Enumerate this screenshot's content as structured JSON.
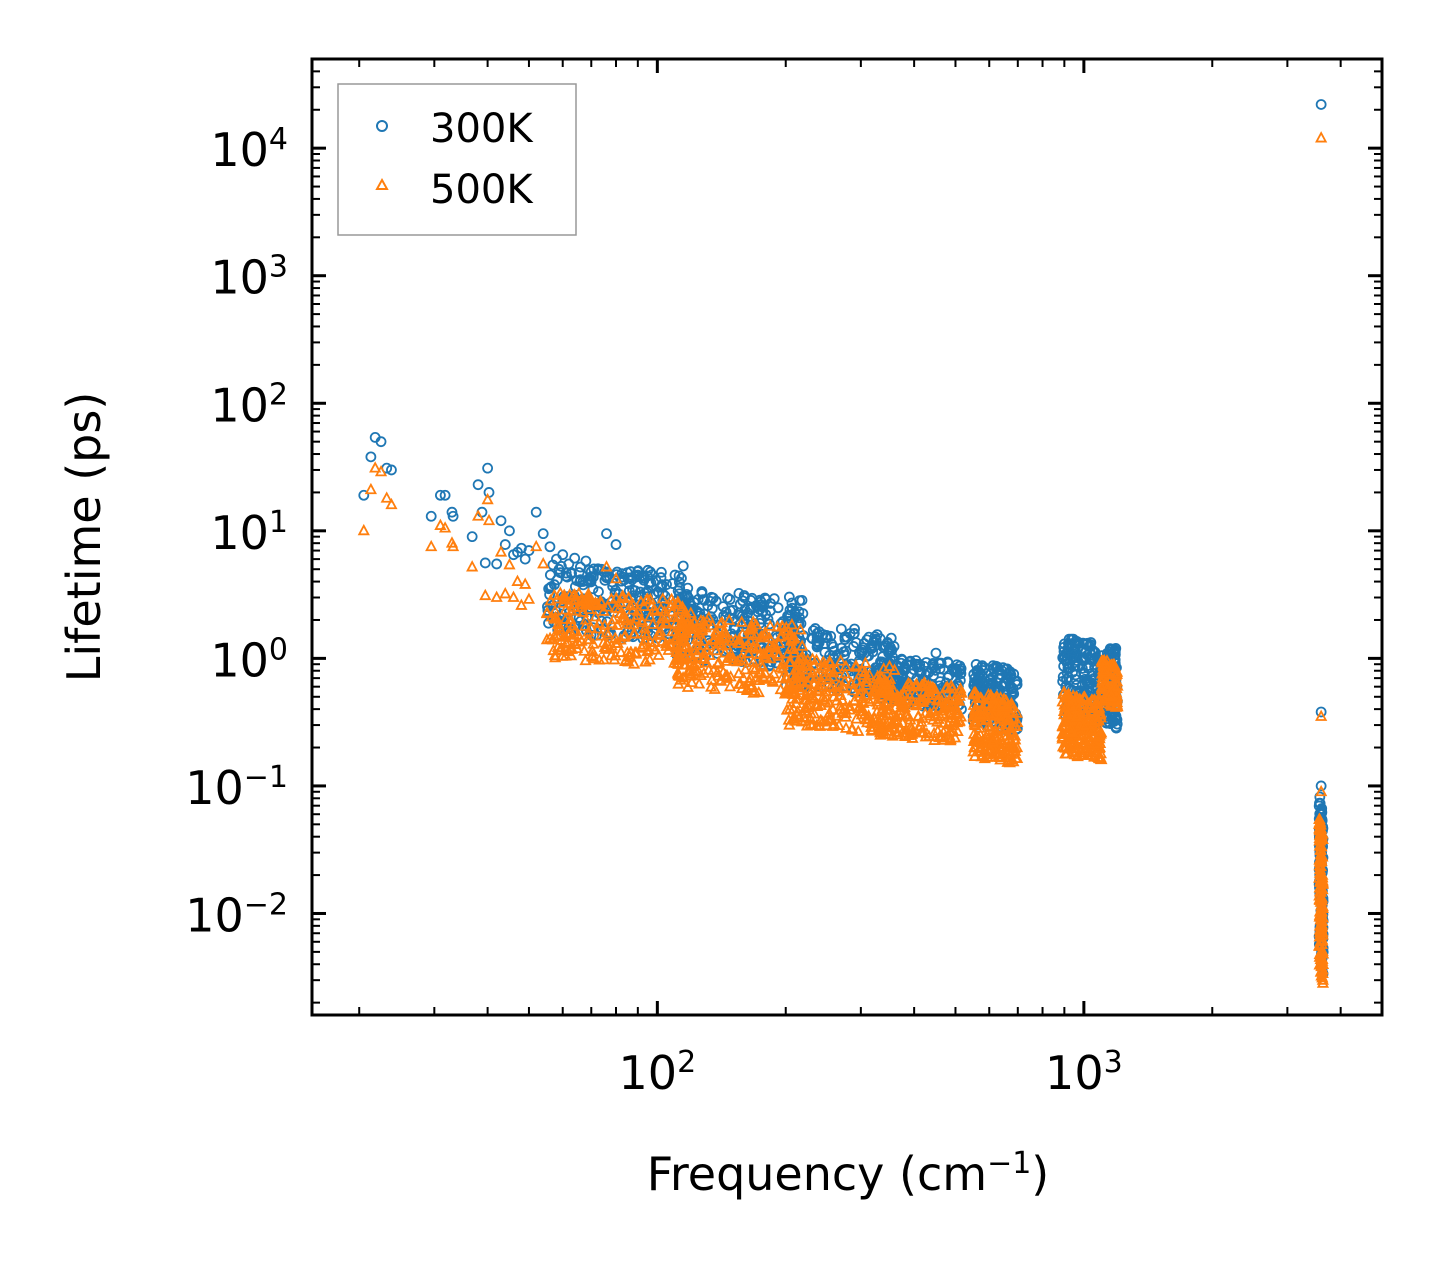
{
  "chart_data": {
    "type": "scatter",
    "xscale": "log",
    "yscale": "log",
    "xlabel": "Frequency (cm",
    "xlabel_sup": "−1",
    "xlabel_close": ")",
    "ylabel": "Lifetime (ps)",
    "xlim": [
      15.5,
      5000
    ],
    "ylim": [
      0.0016,
      50000
    ],
    "xticks": [
      {
        "value": 100,
        "base": "10",
        "exp": "2"
      },
      {
        "value": 1000,
        "base": "10",
        "exp": "3"
      }
    ],
    "yticks": [
      {
        "value": 0.01,
        "base": "10",
        "exp": "−2"
      },
      {
        "value": 0.1,
        "base": "10",
        "exp": "−1"
      },
      {
        "value": 1,
        "base": "10",
        "exp": "0"
      },
      {
        "value": 10,
        "base": "10",
        "exp": "1"
      },
      {
        "value": 100,
        "base": "10",
        "exp": "2"
      },
      {
        "value": 1000,
        "base": "10",
        "exp": "3"
      },
      {
        "value": 10000,
        "base": "10",
        "exp": "4"
      }
    ],
    "legend_position": "top-left",
    "series": [
      {
        "name": "300K",
        "marker": "circle",
        "color": "#1f77b4",
        "points": [
          [
            20.5,
            19
          ],
          [
            21.3,
            38
          ],
          [
            21.8,
            54
          ],
          [
            22.5,
            50
          ],
          [
            23.2,
            31
          ],
          [
            23.8,
            30
          ],
          [
            29.5,
            13
          ],
          [
            31,
            19
          ],
          [
            31.8,
            19
          ],
          [
            33,
            14
          ],
          [
            33.2,
            13
          ],
          [
            36.8,
            9
          ],
          [
            38,
            23
          ],
          [
            38.8,
            14
          ],
          [
            39.5,
            5.6
          ],
          [
            40,
            31
          ],
          [
            40.3,
            20
          ],
          [
            42,
            5.5
          ],
          [
            43,
            12
          ],
          [
            44,
            7.8
          ],
          [
            45,
            10
          ],
          [
            46,
            6.5
          ],
          [
            47,
            6.8
          ],
          [
            48,
            7.3
          ],
          [
            49,
            6
          ],
          [
            50,
            7
          ],
          [
            52,
            14
          ],
          [
            54,
            9.5
          ],
          [
            56,
            7.5
          ],
          [
            58,
            6
          ],
          [
            60,
            6.5
          ],
          [
            62,
            5.5
          ],
          [
            64,
            6.1
          ],
          [
            66,
            5.2
          ],
          [
            68,
            5.8
          ],
          [
            70,
            4.8
          ],
          [
            74,
            5
          ],
          [
            76,
            9.5
          ],
          [
            80,
            7.8
          ],
          [
            85,
            4.7
          ],
          [
            90,
            4.5
          ],
          [
            95,
            4.9
          ],
          [
            102,
            4.3
          ],
          [
            110,
            4.5
          ],
          [
            115,
            5.3
          ],
          [
            160,
            3
          ],
          [
            270,
            1.7
          ],
          [
            290,
            1.7
          ],
          [
            310,
            1.4
          ],
          [
            450,
            1.1
          ],
          [
            3600,
            22000
          ],
          [
            3600,
            0.38
          ],
          [
            3600,
            0.1
          ]
        ],
        "bands": [
          {
            "x0": 55,
            "x1": 120,
            "y0": 1.6,
            "y1": 5.5,
            "n": 260
          },
          {
            "x0": 110,
            "x1": 220,
            "y0": 1.0,
            "y1": 3.6,
            "n": 260
          },
          {
            "x0": 200,
            "x1": 360,
            "y0": 0.6,
            "y1": 1.8,
            "n": 220
          },
          {
            "x0": 330,
            "x1": 520,
            "y0": 0.45,
            "y1": 1.05,
            "n": 200
          },
          {
            "x0": 550,
            "x1": 700,
            "y0": 0.3,
            "y1": 0.95,
            "n": 180
          },
          {
            "x0": 890,
            "x1": 1200,
            "y0": 0.35,
            "y1": 1.5,
            "n": 260
          },
          {
            "x0": 3560,
            "x1": 3640,
            "y0": 0.005,
            "y1": 0.09,
            "n": 140
          }
        ]
      },
      {
        "name": "500K",
        "marker": "triangle",
        "color": "#ff7f0e",
        "points": [
          [
            20.5,
            10
          ],
          [
            21.3,
            21
          ],
          [
            21.8,
            31
          ],
          [
            22.5,
            29
          ],
          [
            23.2,
            18
          ],
          [
            23.8,
            16
          ],
          [
            29.5,
            7.5
          ],
          [
            31,
            11
          ],
          [
            31.8,
            10.5
          ],
          [
            33,
            8
          ],
          [
            33.2,
            7.5
          ],
          [
            36.8,
            5.2
          ],
          [
            38,
            13
          ],
          [
            39.5,
            3.1
          ],
          [
            40,
            17.5
          ],
          [
            40.3,
            12
          ],
          [
            42,
            3
          ],
          [
            43,
            6.8
          ],
          [
            44,
            3.2
          ],
          [
            45,
            5.4
          ],
          [
            46,
            3
          ],
          [
            47,
            4
          ],
          [
            48,
            2.6
          ],
          [
            49,
            3.8
          ],
          [
            50,
            2.9
          ],
          [
            52,
            7.5
          ],
          [
            54,
            5.5
          ],
          [
            76,
            5.2
          ],
          [
            80,
            4.2
          ],
          [
            3600,
            12000
          ],
          [
            3600,
            0.35
          ],
          [
            3600,
            0.09
          ]
        ],
        "bands": [
          {
            "x0": 55,
            "x1": 120,
            "y0": 1.0,
            "y1": 3.4,
            "n": 260
          },
          {
            "x0": 110,
            "x1": 220,
            "y0": 0.6,
            "y1": 2.2,
            "n": 260
          },
          {
            "x0": 200,
            "x1": 360,
            "y0": 0.3,
            "y1": 1.05,
            "n": 240
          },
          {
            "x0": 330,
            "x1": 520,
            "y0": 0.25,
            "y1": 0.7,
            "n": 200
          },
          {
            "x0": 550,
            "x1": 700,
            "y0": 0.17,
            "y1": 0.55,
            "n": 200
          },
          {
            "x0": 890,
            "x1": 1100,
            "y0": 0.18,
            "y1": 0.55,
            "n": 240
          },
          {
            "x0": 1100,
            "x1": 1200,
            "y0": 0.45,
            "y1": 1.0,
            "n": 100
          },
          {
            "x0": 3560,
            "x1": 3640,
            "y0": 0.004,
            "y1": 0.06,
            "n": 140
          }
        ]
      }
    ]
  },
  "legend": {
    "items": [
      {
        "label": "300K",
        "color": "#1f77b4",
        "marker": "circle"
      },
      {
        "label": "500K",
        "color": "#ff7f0e",
        "marker": "triangle"
      }
    ]
  }
}
